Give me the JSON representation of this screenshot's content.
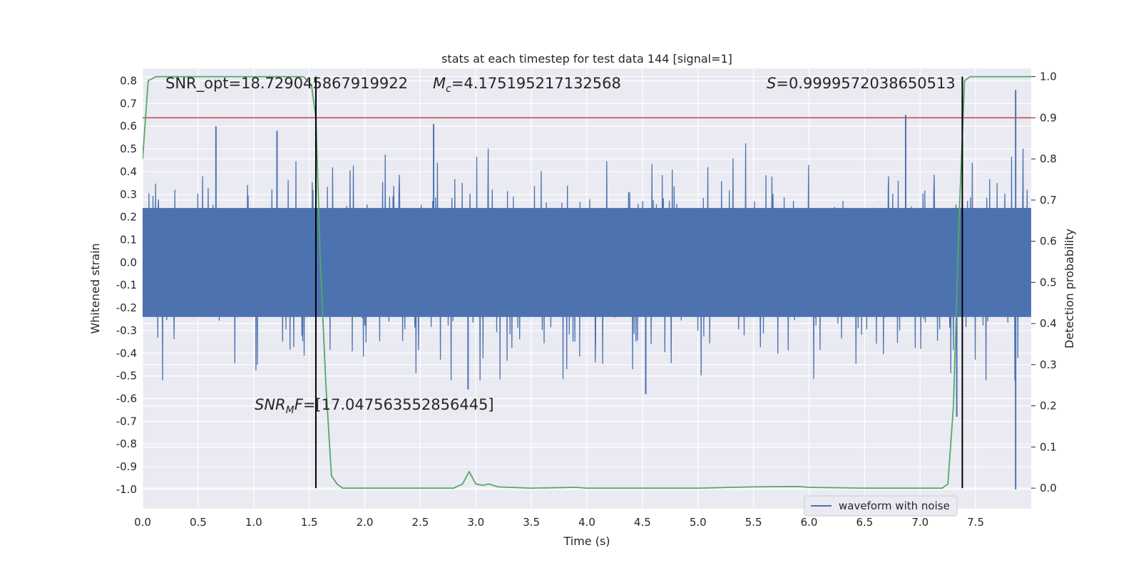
{
  "chart_data": {
    "type": "line",
    "title": "stats at each timestep for test data 144 [signal=1]",
    "xlabel": "Time (s)",
    "ylabel": "Whitened strain",
    "y2label": "Detection probability",
    "xlim": [
      0.0,
      8.0
    ],
    "ylim": [
      -1.085,
      0.855
    ],
    "y2lim": [
      -0.05,
      1.02
    ],
    "xticks": [
      "0.0",
      "0.5",
      "1.0",
      "1.5",
      "2.0",
      "2.5",
      "3.0",
      "3.5",
      "4.0",
      "4.5",
      "5.0",
      "5.5",
      "6.0",
      "6.5",
      "7.0",
      "7.5"
    ],
    "xtick_values": [
      0,
      0.5,
      1,
      1.5,
      2,
      2.5,
      3,
      3.5,
      4,
      4.5,
      5,
      5.5,
      6,
      6.5,
      7,
      7.5
    ],
    "yticks": [
      "0.8",
      "0.7",
      "0.6",
      "0.5",
      "0.4",
      "0.3",
      "0.2",
      "0.1",
      "0.0",
      "-0.1",
      "-0.2",
      "-0.3",
      "-0.4",
      "-0.5",
      "-0.6",
      "-0.7",
      "-0.8",
      "-0.9",
      "-1.0"
    ],
    "ytick_values": [
      0.8,
      0.7,
      0.6,
      0.5,
      0.4,
      0.3,
      0.2,
      0.1,
      0.0,
      -0.1,
      -0.2,
      -0.3,
      -0.4,
      -0.5,
      -0.6,
      -0.7,
      -0.8,
      -0.9,
      -1.0
    ],
    "y2ticks": [
      "1.0",
      "0.9",
      "0.8",
      "0.7",
      "0.6",
      "0.5",
      "0.4",
      "0.3",
      "0.2",
      "0.1",
      "0.0"
    ],
    "y2tick_values": [
      1.0,
      0.9,
      0.8,
      0.7,
      0.6,
      0.5,
      0.4,
      0.3,
      0.2,
      0.1,
      0.0
    ],
    "grid": true,
    "legend_position": "bottom-right",
    "annotations": {
      "snr_opt": "SNR_opt=18.729045867919922",
      "mc_symbol": "M",
      "mc_sub": "c",
      "mc_value": "=4.175195217132568",
      "s_symbol": "S",
      "s_value": "=0.9999572038650513",
      "snr_mf_symbol": "SNR",
      "snr_mf_sub": "M",
      "snr_mf_f": "F",
      "snr_mf_value": "=[17.047563552856445]"
    },
    "series": [
      {
        "name": "waveform with noise",
        "color": "#4c72b0",
        "kind": "noise-band",
        "core_amplitude": 0.24,
        "upper_envelope_typical": 0.45,
        "lower_envelope_typical": -0.4,
        "peaks": [
          {
            "x": 0.66,
            "y": 0.6
          },
          {
            "x": 1.21,
            "y": 0.58
          },
          {
            "x": 2.62,
            "y": 0.61
          },
          {
            "x": 6.87,
            "y": 0.65
          },
          {
            "x": 7.86,
            "y": 0.76
          },
          {
            "x": 7.86,
            "y": -1.0
          },
          {
            "x": 7.33,
            "y": -0.68
          },
          {
            "x": 2.93,
            "y": -0.56
          },
          {
            "x": 4.53,
            "y": -0.58
          }
        ]
      },
      {
        "color": "#55a868",
        "axis": "y2",
        "x": [
          0.0,
          0.05,
          0.12,
          0.2,
          0.5,
          1.0,
          1.45,
          1.52,
          1.56,
          1.6,
          1.65,
          1.7,
          1.75,
          1.8,
          2.0,
          2.5,
          2.8,
          2.88,
          2.94,
          3.0,
          3.06,
          3.12,
          3.2,
          3.5,
          3.9,
          4.0,
          5.0,
          5.5,
          5.9,
          6.0,
          6.5,
          7.0,
          7.2,
          7.25,
          7.3,
          7.35,
          7.4,
          7.45,
          7.5,
          8.0
        ],
        "values": [
          0.8,
          0.99,
          1.0,
          1.0,
          1.0,
          1.0,
          1.0,
          0.98,
          0.9,
          0.55,
          0.25,
          0.03,
          0.01,
          0.0,
          0.0,
          0.0,
          0.0,
          0.01,
          0.04,
          0.01,
          0.007,
          0.01,
          0.003,
          0.0,
          0.002,
          0.0,
          0.0,
          0.003,
          0.004,
          0.002,
          0.0,
          0.0,
          0.0,
          0.01,
          0.2,
          0.65,
          0.99,
          1.0,
          1.0,
          1.0
        ]
      },
      {
        "color": "#c44e52",
        "axis": "y2",
        "kind": "threshold",
        "x": [
          0.0,
          8.0
        ],
        "values": [
          0.9,
          0.9
        ]
      }
    ],
    "vlines": [
      {
        "x": 1.56,
        "y2_from": 0.0,
        "y2_to": 1.0,
        "color": "#000000"
      },
      {
        "x": 7.38,
        "y2_from": 0.0,
        "y2_to": 1.0,
        "color": "#000000"
      }
    ]
  },
  "colors": {
    "axes_background": "#eaeaf2",
    "grid": "#ffffff",
    "waveform": "#4c72b0",
    "probability": "#55a868",
    "threshold": "#c44e52"
  }
}
